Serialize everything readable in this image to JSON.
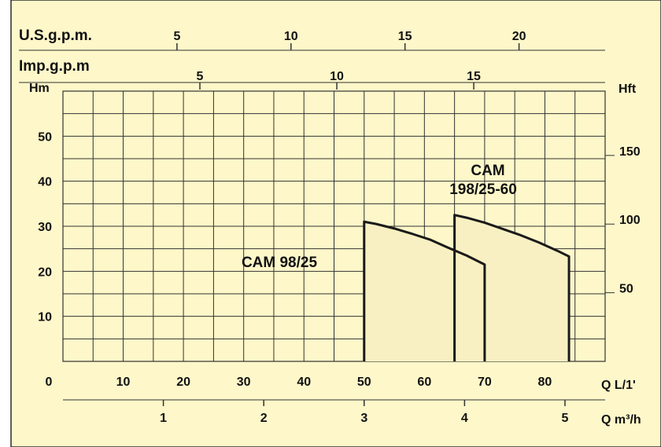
{
  "colors": {
    "background": "#fdf7c9",
    "fill": "#f8f0c2",
    "grid": "#333333",
    "curve": "#1a1a1a",
    "border": "#2b2b2b"
  },
  "chart_data": {
    "type": "area",
    "grid": true,
    "x_axis": {
      "label": "Q L/1'",
      "range": [
        0,
        90
      ],
      "ticks": [
        0,
        10,
        20,
        30,
        40,
        50,
        60,
        70,
        80
      ],
      "tick_labels": [
        "0",
        "10",
        "20",
        "30",
        "40",
        "50",
        "60",
        "70",
        "80"
      ]
    },
    "x_axis_m3h": {
      "label": "Q m³/h",
      "ticks": [
        1,
        2,
        3,
        4,
        5
      ],
      "tick_labels": [
        "1",
        "2",
        "3",
        "4",
        "5"
      ]
    },
    "top_axis_usgpm": {
      "label": "U.S.g.p.m.",
      "ticks": [
        5,
        10,
        15,
        20
      ],
      "tick_labels": [
        "5",
        "10",
        "15",
        "20"
      ]
    },
    "top_axis_impgpm": {
      "label": "Imp.g.p.m",
      "ticks": [
        5,
        10,
        15
      ],
      "tick_labels": [
        "5",
        "10",
        "15"
      ]
    },
    "y_axis": {
      "label": "Hm",
      "range": [
        0,
        60
      ],
      "ticks": [
        10,
        20,
        30,
        40,
        50
      ],
      "tick_labels": [
        "10",
        "20",
        "30",
        "40",
        "50"
      ]
    },
    "y_axis_right": {
      "label": "Hft",
      "ticks": [
        50,
        100,
        150
      ],
      "tick_labels": [
        "50",
        "100",
        "150"
      ]
    },
    "series": [
      {
        "name": "CAM 98/25",
        "x": [
          50,
          52,
          55,
          58,
          61,
          64,
          67,
          70
        ],
        "y": [
          31,
          30.5,
          29.5,
          28.3,
          27,
          25.2,
          23.5,
          21.5
        ]
      },
      {
        "name": "CAM 198/25-60",
        "x": [
          65,
          67,
          70,
          73,
          76,
          79,
          82,
          84
        ],
        "y": [
          32.5,
          31.9,
          30.8,
          29.4,
          28,
          26.4,
          24.6,
          23.3
        ]
      }
    ],
    "annotations": [
      "CAM 98/25",
      "CAM",
      "198/25-60"
    ]
  }
}
